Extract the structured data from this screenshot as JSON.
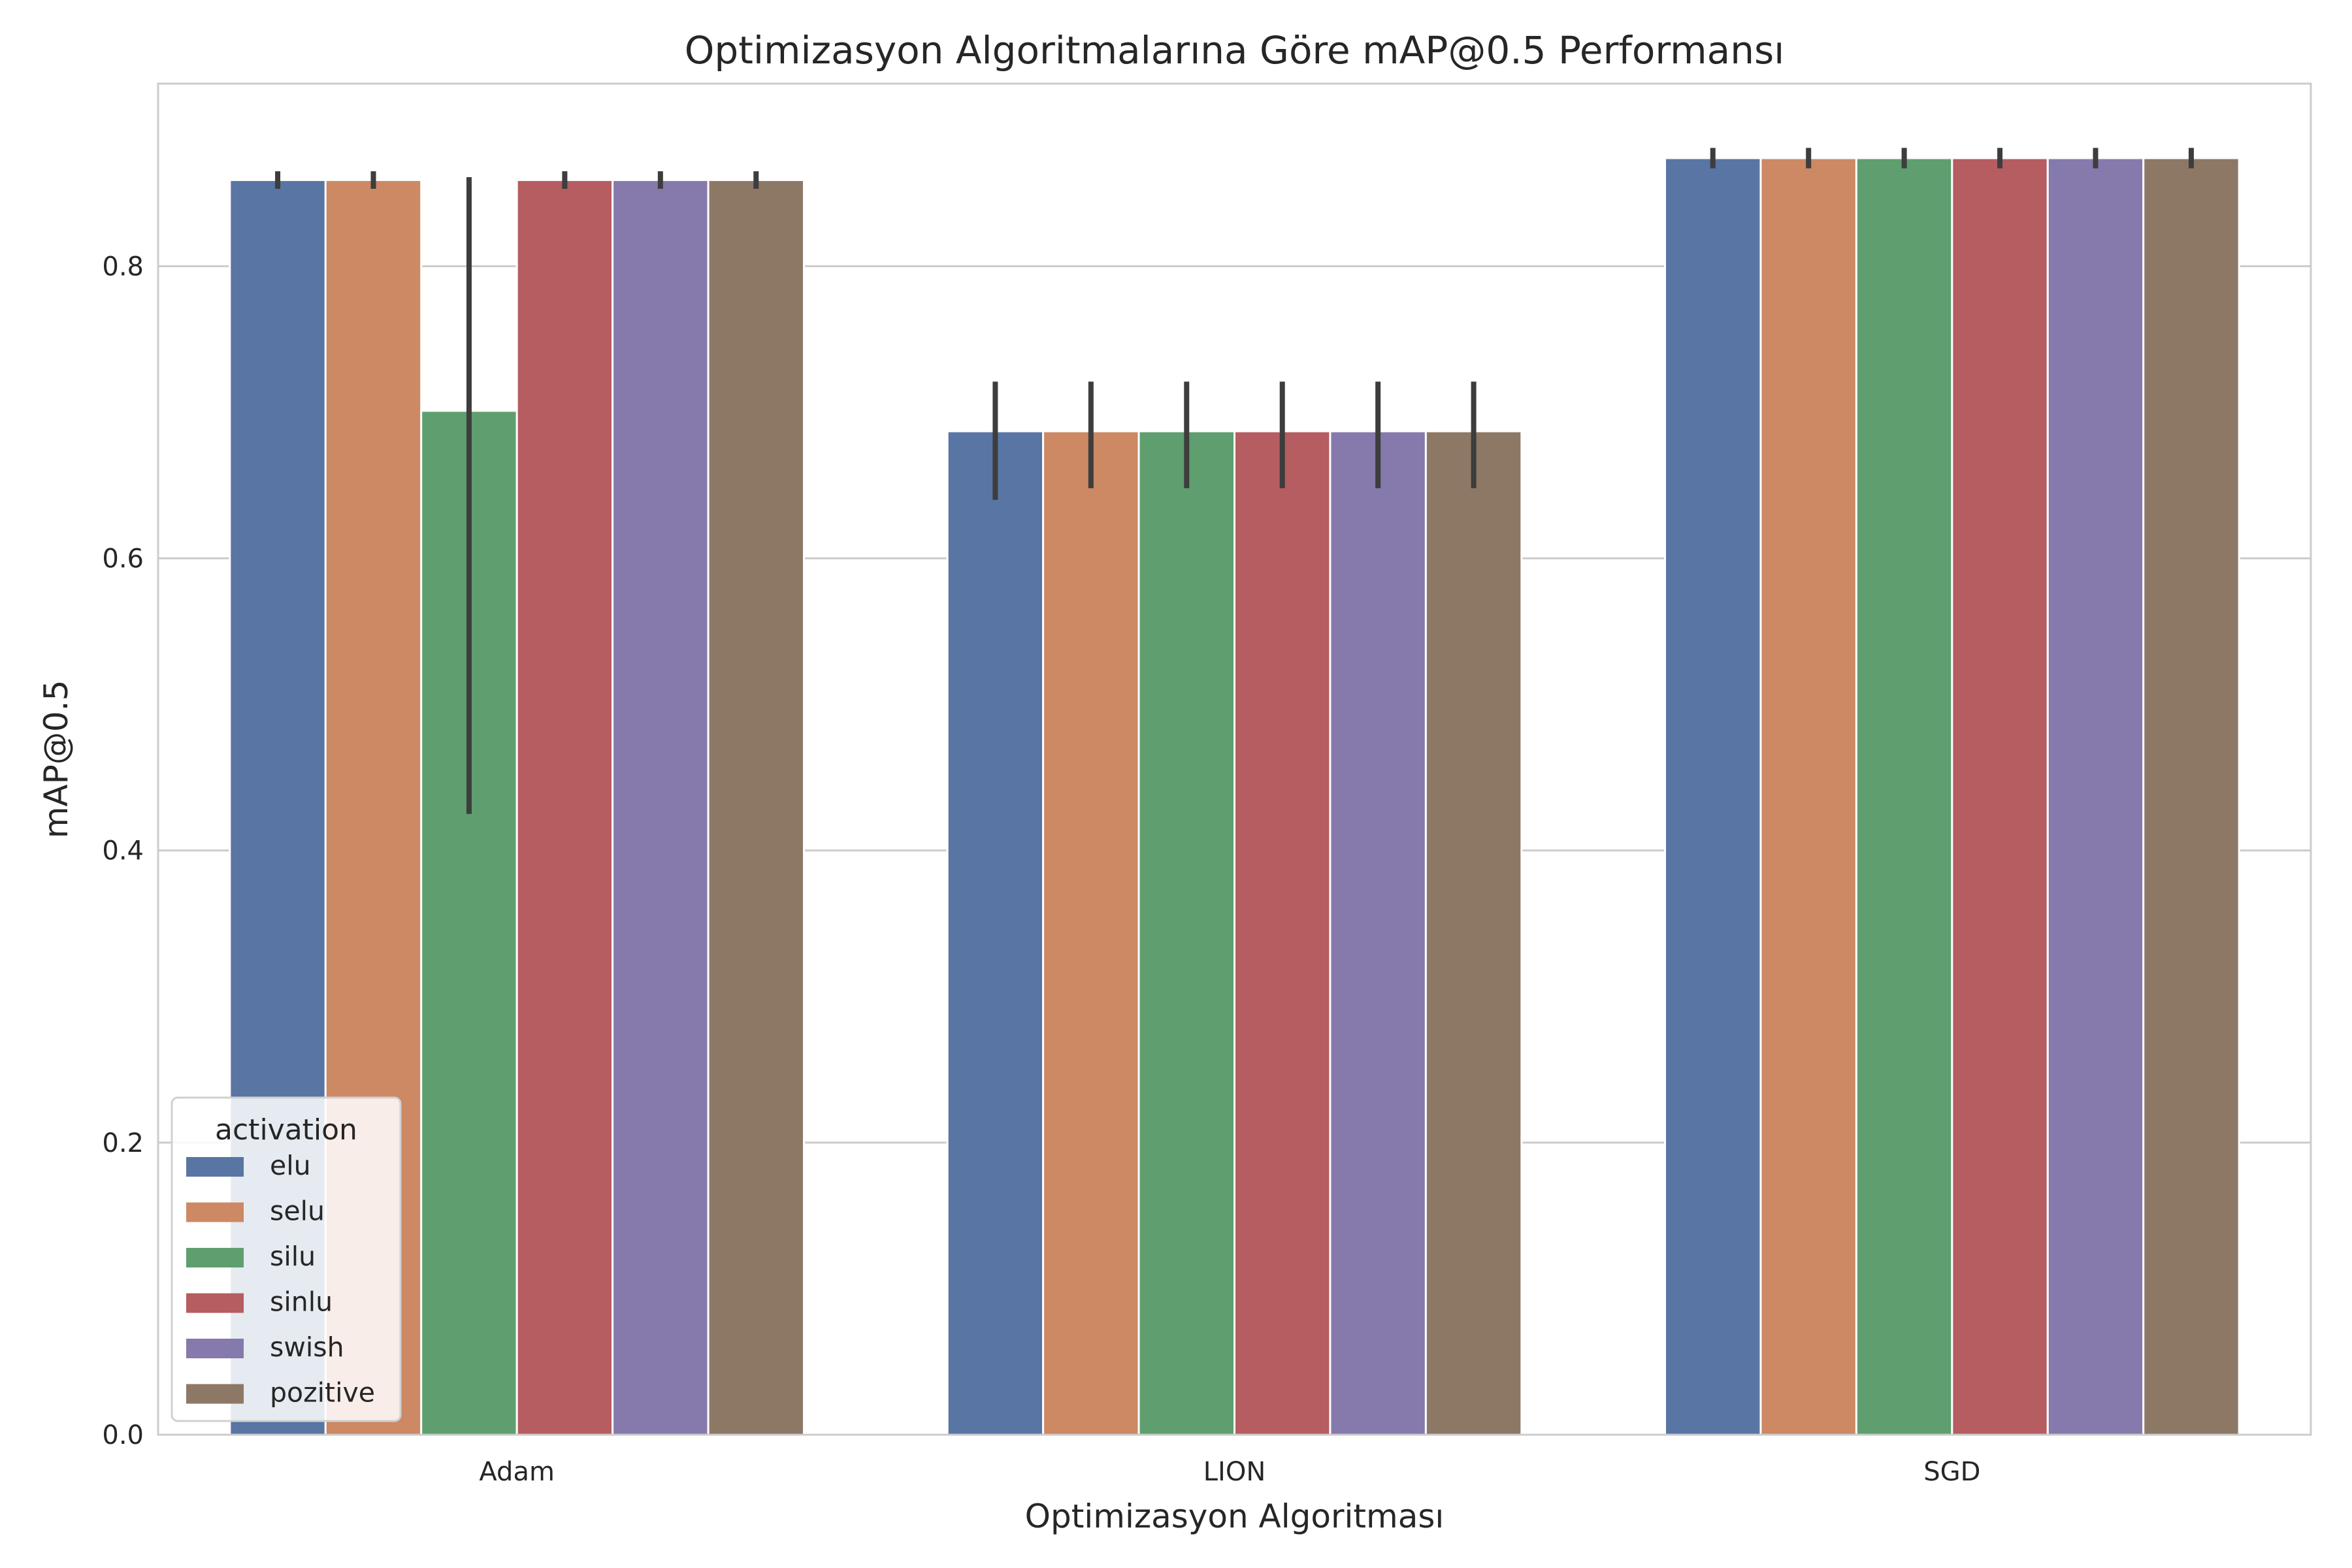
{
  "chart_data": {
    "type": "bar",
    "title": "Optimizasyon Algoritmalarına Göre mAP@0.5 Performansı",
    "xlabel": "Optimizasyon Algoritması",
    "ylabel": "mAP@0.5",
    "categories": [
      "Adam",
      "LION",
      "SGD"
    ],
    "ylim": [
      0,
      0.925
    ],
    "yticks": [
      "0.0",
      "0.2",
      "0.4",
      "0.6",
      "0.8"
    ],
    "grid": "y",
    "legend": {
      "title": "activation",
      "placement": "lower-left"
    },
    "series": [
      {
        "name": "elu",
        "color": "#5875a4",
        "values": [
          0.859,
          0.687,
          0.874
        ],
        "ci_low": [
          0.853,
          0.64,
          0.867
        ],
        "ci_high": [
          0.865,
          0.721,
          0.881
        ]
      },
      {
        "name": "selu",
        "color": "#cc8963",
        "values": [
          0.859,
          0.687,
          0.874
        ],
        "ci_low": [
          0.853,
          0.648,
          0.867
        ],
        "ci_high": [
          0.865,
          0.721,
          0.881
        ]
      },
      {
        "name": "silu",
        "color": "#5f9e6e",
        "values": [
          0.701,
          0.687,
          0.874
        ],
        "ci_low": [
          0.425,
          0.648,
          0.867
        ],
        "ci_high": [
          0.861,
          0.721,
          0.881
        ]
      },
      {
        "name": "sinlu",
        "color": "#b55d60",
        "values": [
          0.859,
          0.687,
          0.874
        ],
        "ci_low": [
          0.853,
          0.648,
          0.867
        ],
        "ci_high": [
          0.865,
          0.721,
          0.881
        ]
      },
      {
        "name": "swish",
        "color": "#857aab",
        "values": [
          0.859,
          0.687,
          0.874
        ],
        "ci_low": [
          0.853,
          0.648,
          0.867
        ],
        "ci_high": [
          0.865,
          0.721,
          0.881
        ]
      },
      {
        "name": "pozitive",
        "color": "#8d7866",
        "values": [
          0.859,
          0.687,
          0.874
        ],
        "ci_low": [
          0.853,
          0.648,
          0.867
        ],
        "ci_high": [
          0.865,
          0.721,
          0.881
        ]
      }
    ]
  }
}
